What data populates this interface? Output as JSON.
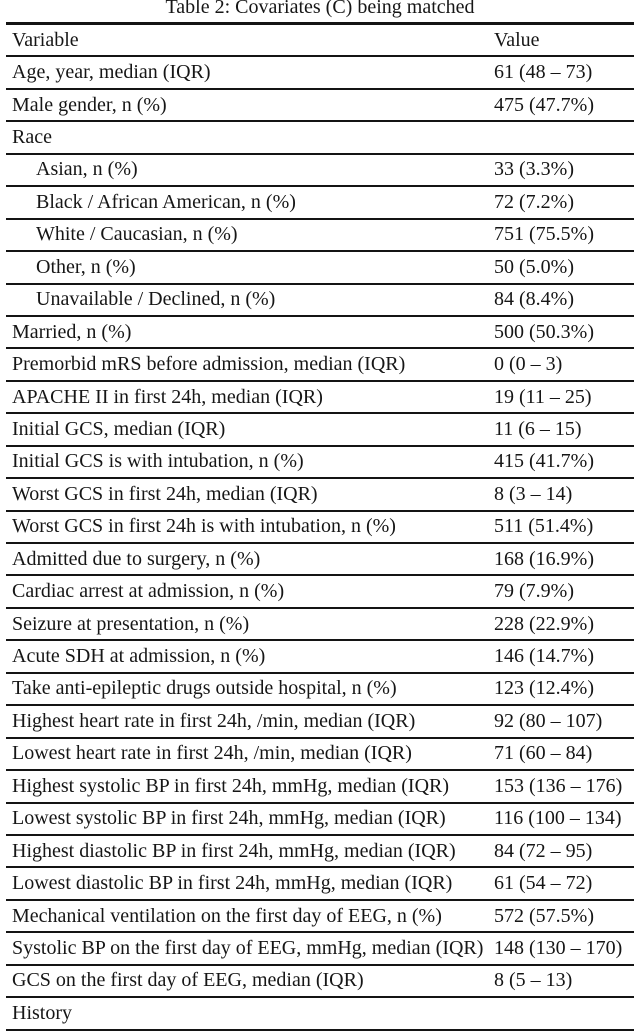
{
  "title": "Table 2: Covariates (C) being matched",
  "table": {
    "columns": [
      "Variable",
      "Value"
    ],
    "rows": [
      {
        "label": "Age, year, median (IQR)",
        "value": "61 (48 – 73)",
        "indent": false,
        "section": false
      },
      {
        "label": "Male gender, n (%)",
        "value": "475 (47.7%)",
        "indent": false,
        "section": false
      },
      {
        "label": "Race",
        "value": "",
        "indent": false,
        "section": true
      },
      {
        "label": "Asian, n (%)",
        "value": "33 (3.3%)",
        "indent": true,
        "section": false
      },
      {
        "label": "Black / African American, n (%)",
        "value": "72 (7.2%)",
        "indent": true,
        "section": false
      },
      {
        "label": "White / Caucasian, n (%)",
        "value": "751 (75.5%)",
        "indent": true,
        "section": false
      },
      {
        "label": "Other, n (%)",
        "value": "50 (5.0%)",
        "indent": true,
        "section": false
      },
      {
        "label": "Unavailable / Declined, n (%)",
        "value": "84 (8.4%)",
        "indent": true,
        "section": false
      },
      {
        "label": "Married, n (%)",
        "value": "500 (50.3%)",
        "indent": false,
        "section": false
      },
      {
        "label": "Premorbid mRS before admission, median (IQR)",
        "value": "0 (0 – 3)",
        "indent": false,
        "section": false
      },
      {
        "label": "APACHE II in first 24h, median (IQR)",
        "value": "19 (11 – 25)",
        "indent": false,
        "section": false
      },
      {
        "label": "Initial GCS, median (IQR)",
        "value": "11 (6 – 15)",
        "indent": false,
        "section": false
      },
      {
        "label": "Initial GCS is with intubation, n (%)",
        "value": "415 (41.7%)",
        "indent": false,
        "section": false
      },
      {
        "label": "Worst GCS in first 24h, median (IQR)",
        "value": "8 (3 – 14)",
        "indent": false,
        "section": false
      },
      {
        "label": "Worst GCS in first 24h is with intubation, n (%)",
        "value": "511 (51.4%)",
        "indent": false,
        "section": false
      },
      {
        "label": "Admitted due to surgery, n (%)",
        "value": "168 (16.9%)",
        "indent": false,
        "section": false
      },
      {
        "label": "Cardiac arrest at admission, n (%)",
        "value": "79 (7.9%)",
        "indent": false,
        "section": false
      },
      {
        "label": "Seizure at presentation, n (%)",
        "value": "228 (22.9%)",
        "indent": false,
        "section": false
      },
      {
        "label": "Acute SDH at admission, n (%)",
        "value": "146 (14.7%)",
        "indent": false,
        "section": false
      },
      {
        "label": "Take anti-epileptic drugs outside hospital, n (%)",
        "value": "123 (12.4%)",
        "indent": false,
        "section": false
      },
      {
        "label": "Highest heart rate in first 24h, /min, median (IQR)",
        "value": "92 (80 – 107)",
        "indent": false,
        "section": false
      },
      {
        "label": "Lowest heart rate in first 24h, /min, median (IQR)",
        "value": "71 (60 – 84)",
        "indent": false,
        "section": false
      },
      {
        "label": "Highest systolic BP in first 24h, mmHg, median (IQR)",
        "value": "153 (136 – 176)",
        "indent": false,
        "section": false
      },
      {
        "label": "Lowest systolic BP in first 24h, mmHg, median (IQR)",
        "value": "116 (100 – 134)",
        "indent": false,
        "section": false
      },
      {
        "label": "Highest diastolic BP in first 24h, mmHg, median (IQR)",
        "value": "84 (72 – 95)",
        "indent": false,
        "section": false
      },
      {
        "label": "Lowest diastolic BP in first 24h, mmHg, median (IQR)",
        "value": "61 (54 – 72)",
        "indent": false,
        "section": false
      },
      {
        "label": "Mechanical ventilation on the first day of EEG, n (%)",
        "value": "572 (57.5%)",
        "indent": false,
        "section": false
      },
      {
        "label": "Systolic BP on the first day of EEG, mmHg, median (IQR)",
        "value": "148 (130 – 170)",
        "indent": false,
        "section": false
      },
      {
        "label": "GCS on the first day of EEG, median (IQR)",
        "value": "8 (5 – 13)",
        "indent": false,
        "section": false
      },
      {
        "label": "History",
        "value": "",
        "indent": false,
        "section": true
      }
    ]
  }
}
